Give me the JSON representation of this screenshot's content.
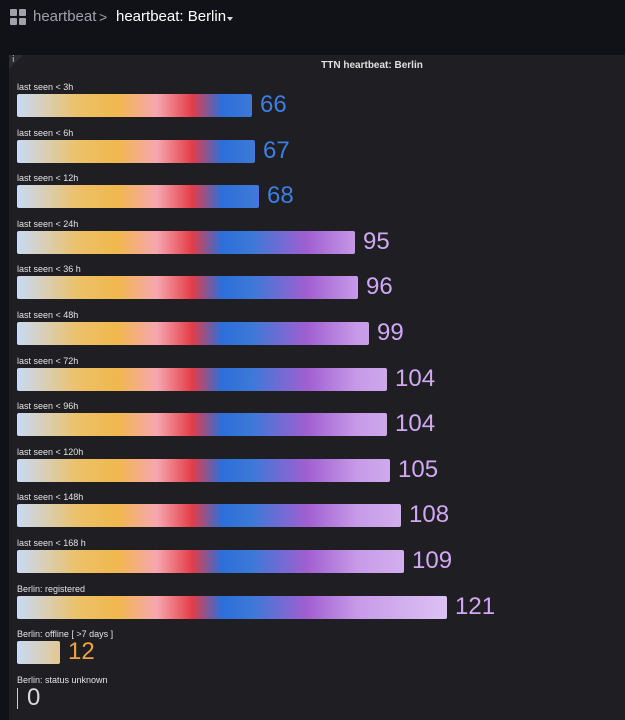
{
  "breadcrumb": {
    "folder": "heartbeat",
    "separator": ">",
    "dashboard": "heartbeat: Berlin"
  },
  "panel": {
    "title": "TTN heartbeat: Berlin",
    "info_icon": "i"
  },
  "colors": {
    "value_blue": "#3d7ee3",
    "value_purple": "#d1a8f4",
    "value_orange": "#f2a33c",
    "value_white": "#d8d9da"
  },
  "gauge_max": 121,
  "rows": [
    {
      "label": "last seen < 3h",
      "value": 66,
      "value_text": "66",
      "color": "#3d7ee3"
    },
    {
      "label": "last seen < 6h",
      "value": 67,
      "value_text": "67",
      "color": "#3d7ee3"
    },
    {
      "label": "last seen < 12h",
      "value": 68,
      "value_text": "68",
      "color": "#3d7ee3"
    },
    {
      "label": "last seen < 24h",
      "value": 95,
      "value_text": "95",
      "color": "#d1a8f4"
    },
    {
      "label": "last seen < 36 h",
      "value": 96,
      "value_text": "96",
      "color": "#d1a8f4"
    },
    {
      "label": "last seen < 48h",
      "value": 99,
      "value_text": "99",
      "color": "#d1a8f4"
    },
    {
      "label": "last seen < 72h",
      "value": 104,
      "value_text": "104",
      "color": "#d1a8f4"
    },
    {
      "label": "last seen < 96h",
      "value": 104,
      "value_text": "104",
      "color": "#d1a8f4"
    },
    {
      "label": "last seen < 120h",
      "value": 105,
      "value_text": "105",
      "color": "#d1a8f4"
    },
    {
      "label": "last seen < 148h",
      "value": 108,
      "value_text": "108",
      "color": "#d1a8f4"
    },
    {
      "label": "last seen < 168 h",
      "value": 109,
      "value_text": "109",
      "color": "#d1a8f4"
    },
    {
      "label": "Berlin: registered",
      "value": 121,
      "value_text": "121",
      "color": "#d1a8f4"
    },
    {
      "label": "Berlin: offline [ >7 days ]",
      "value": 12,
      "value_text": "12",
      "color": "#f2a33c"
    },
    {
      "label": "Berlin: status unknown",
      "value": 0,
      "value_text": "0",
      "color": "#d8d9da"
    }
  ]
}
